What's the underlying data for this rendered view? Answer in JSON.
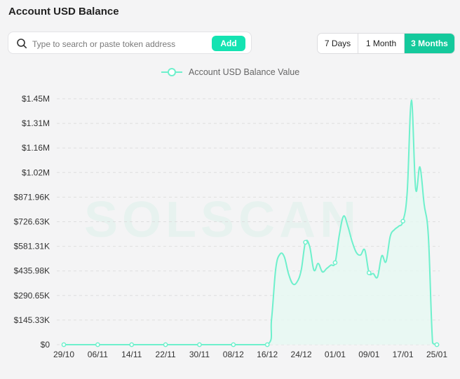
{
  "page_title": "Account USD Balance",
  "search": {
    "placeholder": "Type to search or paste token address",
    "value": "",
    "add_label": "Add"
  },
  "range_tabs": [
    {
      "label": "7 Days",
      "active": false
    },
    {
      "label": "1 Month",
      "active": false
    },
    {
      "label": "3 Months",
      "active": true
    }
  ],
  "watermark": "SOLSCAN",
  "colors": {
    "accent": "#14e3b2",
    "line": "#6ef0cc",
    "fill": "#e6f8f2",
    "active_tab": "#14c99c"
  },
  "chart_data": {
    "type": "area",
    "title": "",
    "legend": {
      "position": "top-center",
      "entries": [
        "Account USD Balance Value"
      ]
    },
    "xlabel": "",
    "ylabel": "",
    "x_start": "2024-10-29",
    "x_end": "2025-01-25",
    "x_tick_labels": [
      "29/10",
      "06/11",
      "14/11",
      "22/11",
      "30/11",
      "08/12",
      "16/12",
      "24/12",
      "01/01",
      "09/01",
      "17/01",
      "25/01"
    ],
    "y_tick_labels": [
      "$0",
      "$145.33K",
      "$290.65K",
      "$435.98K",
      "$581.31K",
      "$726.63K",
      "$871.96K",
      "$1.02M",
      "$1.16M",
      "$1.31M",
      "$1.45M"
    ],
    "ylim": [
      0,
      1453260
    ],
    "grid": {
      "horizontal": true,
      "vertical": false,
      "style": "dashed"
    },
    "series": [
      {
        "name": "Account USD Balance Value",
        "points": [
          [
            "2024-10-29",
            0
          ],
          [
            "2024-11-06",
            0
          ],
          [
            "2024-11-14",
            0
          ],
          [
            "2024-11-22",
            0
          ],
          [
            "2024-11-30",
            0
          ],
          [
            "2024-12-08",
            0
          ],
          [
            "2024-12-16",
            0
          ],
          [
            "2024-12-17",
            150000
          ],
          [
            "2024-12-18",
            450000
          ],
          [
            "2024-12-19",
            535000
          ],
          [
            "2024-12-20",
            520000
          ],
          [
            "2024-12-21",
            420000
          ],
          [
            "2024-12-22",
            360000
          ],
          [
            "2024-12-23",
            370000
          ],
          [
            "2024-12-24",
            440000
          ],
          [
            "2024-12-25",
            605000
          ],
          [
            "2024-12-26",
            580000
          ],
          [
            "2024-12-27",
            440000
          ],
          [
            "2024-12-28",
            480000
          ],
          [
            "2024-12-29",
            430000
          ],
          [
            "2024-12-30",
            450000
          ],
          [
            "2024-12-31",
            470000
          ],
          [
            "2025-01-01",
            485000
          ],
          [
            "2025-01-02",
            650000
          ],
          [
            "2025-01-03",
            760000
          ],
          [
            "2025-01-04",
            700000
          ],
          [
            "2025-01-05",
            610000
          ],
          [
            "2025-01-06",
            545000
          ],
          [
            "2025-01-07",
            530000
          ],
          [
            "2025-01-08",
            560000
          ],
          [
            "2025-01-09",
            425000
          ],
          [
            "2025-01-10",
            420000
          ],
          [
            "2025-01-11",
            400000
          ],
          [
            "2025-01-12",
            525000
          ],
          [
            "2025-01-13",
            490000
          ],
          [
            "2025-01-14",
            640000
          ],
          [
            "2025-01-15",
            680000
          ],
          [
            "2025-01-16",
            700000
          ],
          [
            "2025-01-17",
            730000
          ],
          [
            "2025-01-18",
            900000
          ],
          [
            "2025-01-19",
            1445000
          ],
          [
            "2025-01-20",
            920000
          ],
          [
            "2025-01-21",
            1050000
          ],
          [
            "2025-01-22",
            830000
          ],
          [
            "2025-01-23",
            640000
          ],
          [
            "2025-01-24",
            10000
          ],
          [
            "2025-01-25",
            0
          ]
        ]
      }
    ],
    "markers_at": [
      "2024-10-29",
      "2024-11-06",
      "2024-11-14",
      "2024-11-22",
      "2024-11-30",
      "2024-12-08",
      "2024-12-16",
      "2024-12-25",
      "2025-01-01",
      "2025-01-09",
      "2025-01-17",
      "2025-01-25"
    ]
  }
}
